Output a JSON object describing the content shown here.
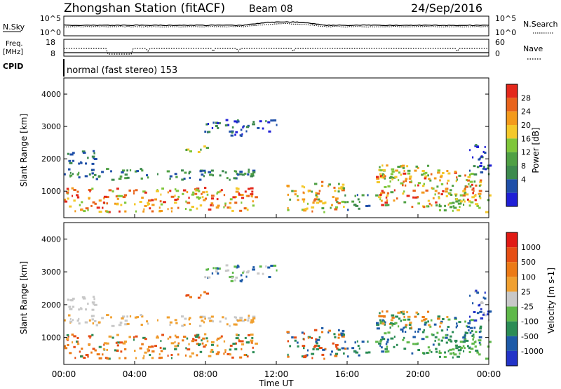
{
  "header": {
    "station": "Zhongshan Station (fitACF)",
    "beam": "Beam 08",
    "date": "24/Sep/2016"
  },
  "side_labels": {
    "nsky": "N.Sky",
    "freq_top": "Freq.",
    "freq_bottom": "[MHz]",
    "cpid": "CPID",
    "nsearch": "N.Search",
    "nave": "Nave"
  },
  "mode_label": "normal (fast stereo) 153",
  "colors": {
    "power": [
      "#1f1fd6",
      "#1f4fa8",
      "#3d8a4e",
      "#4fa044",
      "#7fc63a",
      "#f4c82a",
      "#f39a1b",
      "#e8631b",
      "#e4281b"
    ],
    "velocity": [
      "#2233c8",
      "#1d5aa8",
      "#2b8c55",
      "#5fb84a",
      "#c8c8c8",
      "#f0a030",
      "#ec7a16",
      "#e64e14",
      "#e01a14"
    ]
  },
  "chart_data": [
    {
      "type": "line",
      "name": "noise-panel",
      "ylabel_left": "N.Sky",
      "ylabel_right": "N.Search",
      "left_ticks": [
        "10^5",
        "10^0"
      ],
      "right_ticks": [
        "10^5",
        "10^0"
      ]
    },
    {
      "type": "line",
      "name": "frequency-panel",
      "ylabel_left": "Freq. [MHz]",
      "ylabel_right": "Nave",
      "left_ticks": [
        "18",
        "8"
      ],
      "right_ticks": [
        "60",
        "0"
      ]
    },
    {
      "type": "heatmap",
      "name": "power-panel",
      "ylabel": "Slant Range [km]",
      "yticks": [
        "4000",
        "3000",
        "2000",
        "1000"
      ],
      "ylim": [
        180,
        4500
      ],
      "colorbar_label": "Power [dB]",
      "colorbar_ticks": [
        "28",
        "24",
        "20",
        "16",
        "12",
        "8",
        "4"
      ],
      "colorbar_range": [
        0,
        32
      ]
    },
    {
      "type": "heatmap",
      "name": "velocity-panel",
      "ylabel": "Slant Range [km]",
      "yticks": [
        "4000",
        "3000",
        "2000",
        "1000"
      ],
      "ylim": [
        180,
        4500
      ],
      "colorbar_label": "Velocity [m s-1]",
      "colorbar_ticks": [
        "1000",
        "500",
        "100",
        "25",
        "-25",
        "-100",
        "-500",
        "-1000"
      ]
    }
  ],
  "time_axis": {
    "ticks": [
      "00:00",
      "04:00",
      "08:00",
      "12:00",
      "16:00",
      "20:00",
      "00:00"
    ],
    "label": "Time UT"
  }
}
